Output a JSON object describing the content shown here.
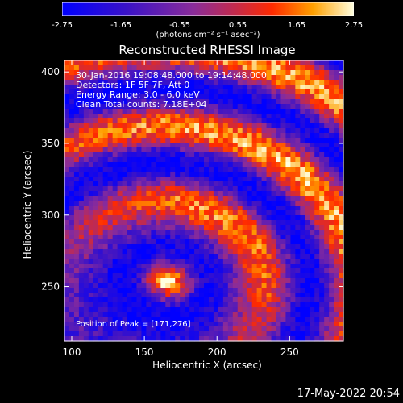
{
  "colorbar": {
    "ticks": [
      "-2.75",
      "-1.65",
      "-0.55",
      "0.55",
      "1.65",
      "2.75"
    ],
    "units": "(photons cm⁻² s⁻¹ asec⁻²)",
    "range": [
      -2.75,
      2.75
    ]
  },
  "info": {
    "line1": "30-Jan-2016 19:08:48.000 to 19:14:48.000",
    "line2": "Detectors: 1F 5F 7F, Att 0",
    "line3": "Energy Range: 3.0 - 6.0 keV",
    "line4": "Clean    Total counts: 7.18E+04"
  },
  "peak_text": "Position of Peak = [171,276]",
  "timestamp": "17-May-2022 20:54",
  "colors": {
    "background": "#000000",
    "low": "#0000ff",
    "mid": "#7a2ca8",
    "high": "#ffff60"
  },
  "chart_data": {
    "type": "heatmap",
    "title": "Reconstructed RHESSI Image",
    "xlabel": "Heliocentric X (arcsec)",
    "ylabel": "Heliocentric Y (arcsec)",
    "xlim": [
      95,
      287
    ],
    "ylim": [
      212,
      408
    ],
    "xticks": [
      100,
      150,
      200,
      250
    ],
    "yticks": [
      250,
      300,
      350,
      400
    ],
    "peak": [
      171,
      276
    ],
    "grid": false
  }
}
